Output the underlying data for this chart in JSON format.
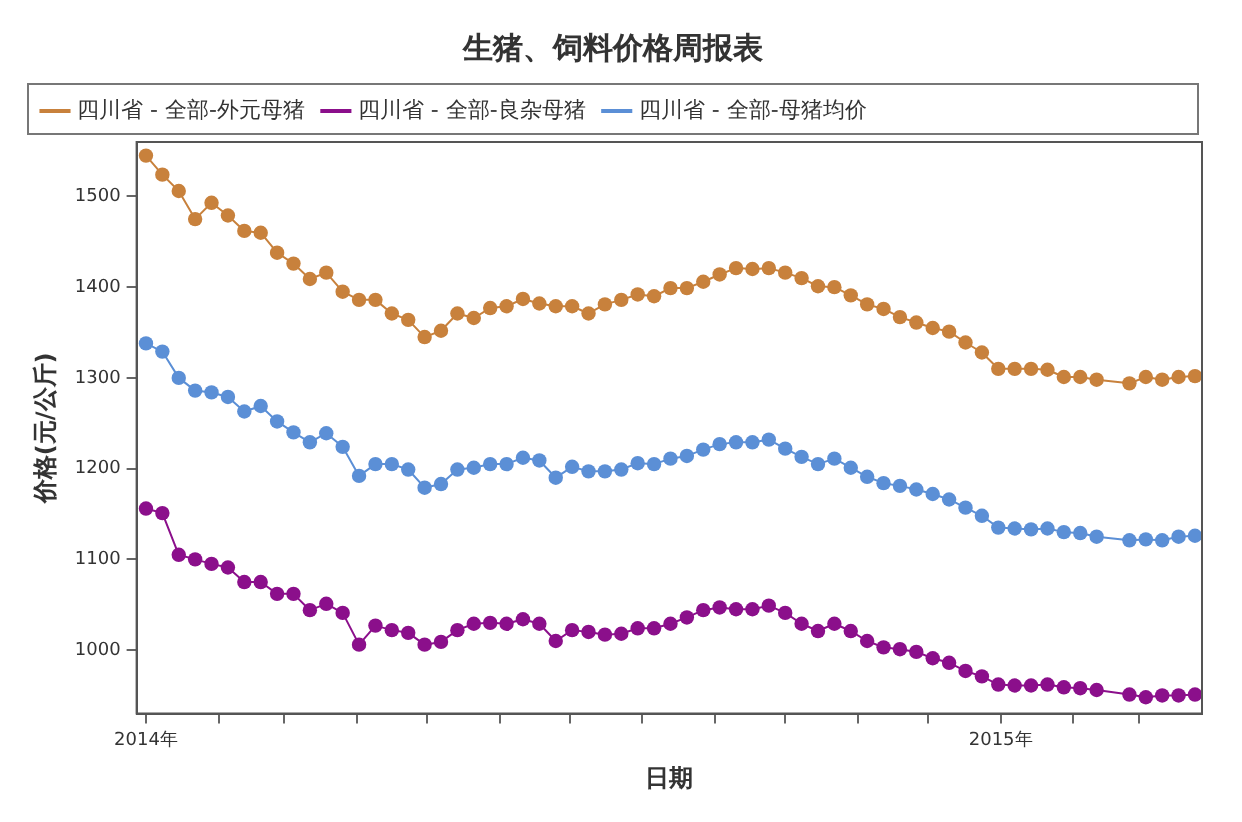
{
  "chart_data": {
    "type": "line",
    "title": "生猪、饲料价格周报表",
    "xlabel": "日期",
    "ylabel": "价格(元/公斤)",
    "x": [
      "2014-01-01",
      "2014-01-08",
      "2014-01-15",
      "2014-01-22",
      "2014-01-29",
      "2014-02-05",
      "2014-02-12",
      "2014-02-19",
      "2014-02-26",
      "2014-03-05",
      "2014-03-12",
      "2014-03-19",
      "2014-03-26",
      "2014-04-02",
      "2014-04-09",
      "2014-04-16",
      "2014-04-23",
      "2014-04-30",
      "2014-05-07",
      "2014-05-14",
      "2014-05-21",
      "2014-05-28",
      "2014-06-04",
      "2014-06-11",
      "2014-06-18",
      "2014-06-25",
      "2014-07-02",
      "2014-07-09",
      "2014-07-16",
      "2014-07-23",
      "2014-07-30",
      "2014-08-06",
      "2014-08-13",
      "2014-08-20",
      "2014-08-27",
      "2014-09-03",
      "2014-09-10",
      "2014-09-17",
      "2014-09-24",
      "2014-10-01",
      "2014-10-08",
      "2014-10-15",
      "2014-10-22",
      "2014-10-29",
      "2014-11-05",
      "2014-11-12",
      "2014-11-19",
      "2014-11-26",
      "2014-12-03",
      "2014-12-10",
      "2014-12-17",
      "2014-12-24",
      "2014-12-31",
      "2015-01-07",
      "2015-01-14",
      "2015-01-21",
      "2015-01-28",
      "2015-02-04",
      "2015-02-11",
      "2015-02-25",
      "2015-03-04",
      "2015-03-11",
      "2015-03-18",
      "2015-03-25"
    ],
    "series": [
      {
        "name": "四川省 - 全部-外元母猪",
        "color": "#c8813c",
        "values": [
          1545,
          1524,
          1506,
          1475,
          1493,
          1479,
          1462,
          1460,
          1438,
          1426,
          1409,
          1416,
          1395,
          1386,
          1386,
          1371,
          1364,
          1345,
          1352,
          1371,
          1366,
          1377,
          1379,
          1387,
          1382,
          1379,
          1379,
          1371,
          1381,
          1386,
          1392,
          1390,
          1399,
          1399,
          1406,
          1414,
          1421,
          1420,
          1421,
          1416,
          1410,
          1401,
          1400,
          1391,
          1381,
          1376,
          1367,
          1361,
          1355,
          1351,
          1339,
          1328,
          1310,
          1310,
          1310,
          1309,
          1301,
          1301,
          1298,
          1294,
          1301,
          1298,
          1301,
          1302
        ]
      },
      {
        "name": "四川省 - 全部-良杂母猪",
        "color": "#8b0f8b",
        "values": [
          1156,
          1151,
          1105,
          1100,
          1095,
          1091,
          1075,
          1075,
          1062,
          1062,
          1044,
          1051,
          1041,
          1006,
          1027,
          1022,
          1019,
          1006,
          1009,
          1022,
          1029,
          1030,
          1029,
          1034,
          1029,
          1010,
          1022,
          1020,
          1017,
          1018,
          1024,
          1024,
          1029,
          1036,
          1044,
          1047,
          1045,
          1045,
          1049,
          1041,
          1029,
          1021,
          1029,
          1021,
          1010,
          1003,
          1001,
          998,
          991,
          986,
          977,
          971,
          962,
          961,
          961,
          962,
          959,
          958,
          956,
          951,
          948,
          950,
          950,
          951
        ]
      },
      {
        "name": "四川省 - 全部-母猪均价",
        "color": "#5b8fd6",
        "values": [
          1338,
          1329,
          1300,
          1286,
          1284,
          1279,
          1263,
          1269,
          1252,
          1240,
          1229,
          1239,
          1224,
          1192,
          1205,
          1205,
          1199,
          1179,
          1183,
          1199,
          1201,
          1205,
          1205,
          1212,
          1209,
          1190,
          1202,
          1197,
          1197,
          1199,
          1206,
          1205,
          1211,
          1214,
          1221,
          1227,
          1229,
          1229,
          1232,
          1222,
          1213,
          1205,
          1211,
          1201,
          1191,
          1184,
          1181,
          1177,
          1172,
          1166,
          1157,
          1148,
          1135,
          1134,
          1133,
          1134,
          1130,
          1129,
          1125,
          1121,
          1122,
          1121,
          1125,
          1126
        ]
      }
    ],
    "xlim": [
      "2013-12-28",
      "2015-03-28"
    ],
    "xticks": [
      {
        "value": "2014-01-01",
        "label": "2014年"
      },
      {
        "value": "2014-02-01",
        "label": null
      },
      {
        "value": "2014-03-01",
        "label": null
      },
      {
        "value": "2014-04-01",
        "label": null
      },
      {
        "value": "2014-05-01",
        "label": null
      },
      {
        "value": "2014-06-01",
        "label": null
      },
      {
        "value": "2014-07-01",
        "label": null
      },
      {
        "value": "2014-08-01",
        "label": null
      },
      {
        "value": "2014-09-01",
        "label": null
      },
      {
        "value": "2014-10-01",
        "label": null
      },
      {
        "value": "2014-11-01",
        "label": null
      },
      {
        "value": "2014-12-01",
        "label": null
      },
      {
        "value": "2015-01-01",
        "label": "2015年"
      },
      {
        "value": "2015-02-01",
        "label": null
      },
      {
        "value": "2015-03-01",
        "label": null
      }
    ],
    "ylim": [
      930,
      1560
    ],
    "yticks": [
      1000,
      1100,
      1200,
      1300,
      1400,
      1500
    ],
    "grid": false,
    "legend": "top",
    "marker": "circle",
    "line_style": "solid"
  }
}
